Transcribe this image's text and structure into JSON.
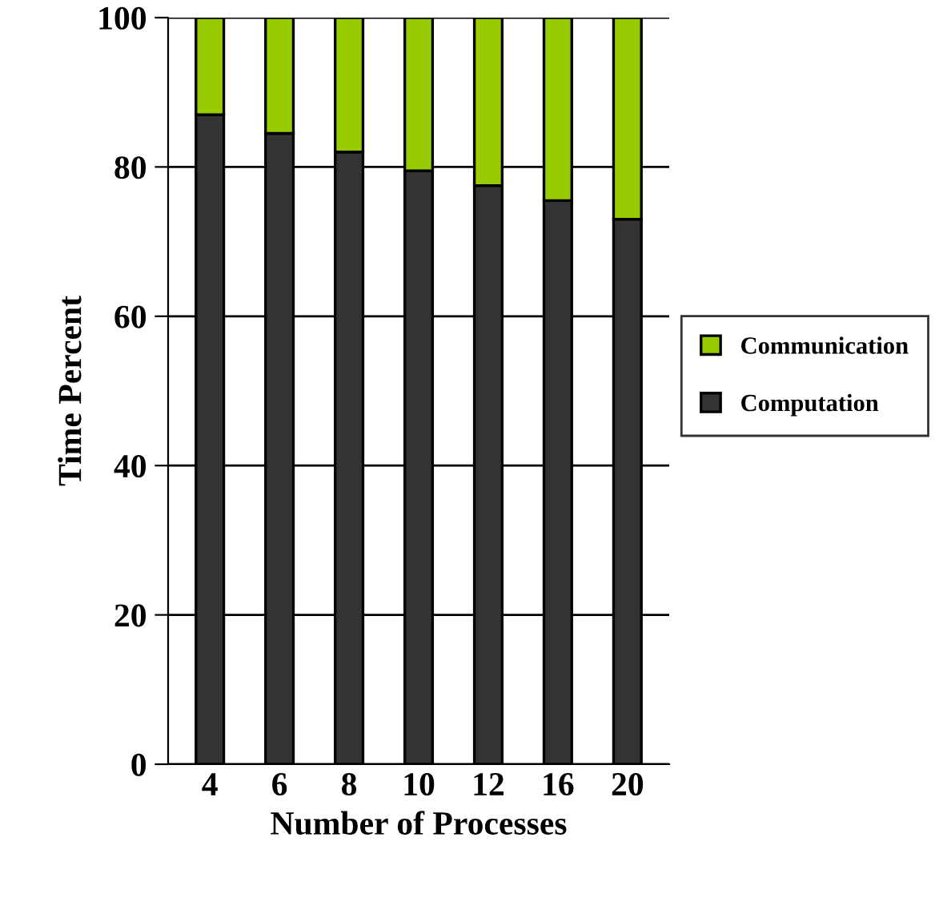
{
  "chart_data": {
    "type": "bar",
    "stacked": true,
    "xlabel": "Number of Processes",
    "ylabel": "Time Percent",
    "categories": [
      "4",
      "6",
      "8",
      "10",
      "12",
      "16",
      "20"
    ],
    "series": [
      {
        "name": "Computation",
        "color": "#333333",
        "values": [
          87,
          84.5,
          82,
          79.5,
          77.5,
          75.5,
          73
        ]
      },
      {
        "name": "Communication",
        "color": "#99cc00",
        "values": [
          13,
          15.5,
          18,
          20.5,
          22.5,
          24.5,
          27
        ]
      }
    ],
    "ylim": [
      0,
      100
    ],
    "yticks": [
      0,
      20,
      40,
      60,
      80,
      100
    ],
    "grid": "y",
    "legend": "right"
  }
}
